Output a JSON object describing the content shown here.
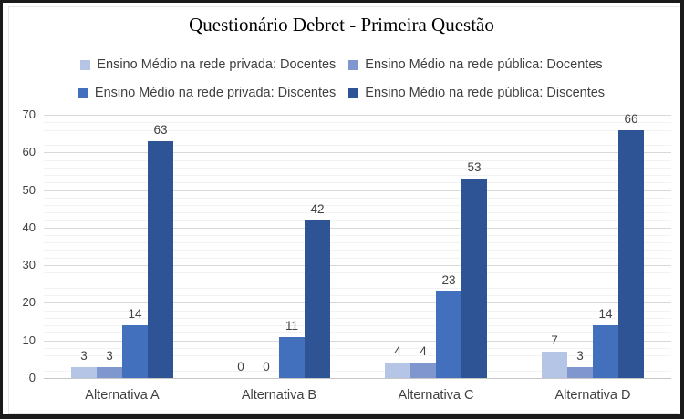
{
  "page": {
    "background": "#ffffff",
    "frame_border_color": "#1a1a1a"
  },
  "chart_data": {
    "type": "bar",
    "title": "Questionário Debret - Primeira Questão",
    "categories": [
      "Alternativa A",
      "Alternativa B",
      "Alternativa C",
      "Alternativa D"
    ],
    "series": [
      {
        "name": "Ensino Médio na rede privada: Docentes",
        "color": "#b5c5e6",
        "values": [
          3,
          0,
          4,
          7
        ]
      },
      {
        "name": "Ensino Médio na rede pública: Docentes",
        "color": "#8096ce",
        "values": [
          3,
          0,
          4,
          3
        ]
      },
      {
        "name": "Ensino Médio na rede privada: Discentes",
        "color": "#4270bd",
        "values": [
          14,
          11,
          23,
          14
        ]
      },
      {
        "name": "Ensino Médio na rede pública: Discentes",
        "color": "#2f5496",
        "values": [
          63,
          42,
          53,
          66
        ]
      }
    ],
    "ylim": [
      0,
      70
    ],
    "y_major_step": 10,
    "y_minor_step": 2,
    "y_tick_labels": [
      "0",
      "10",
      "20",
      "30",
      "40",
      "50",
      "60",
      "70"
    ],
    "grid": true,
    "data_labels": true,
    "legend_position": "top",
    "legend_rows": [
      [
        0,
        1
      ],
      [
        2,
        3
      ]
    ],
    "text_color": "#404040",
    "gridline_major_color": "#d9d9d9",
    "gridline_minor_color": "#f2f2f2",
    "axis_line_color": "#c6c6c6"
  }
}
